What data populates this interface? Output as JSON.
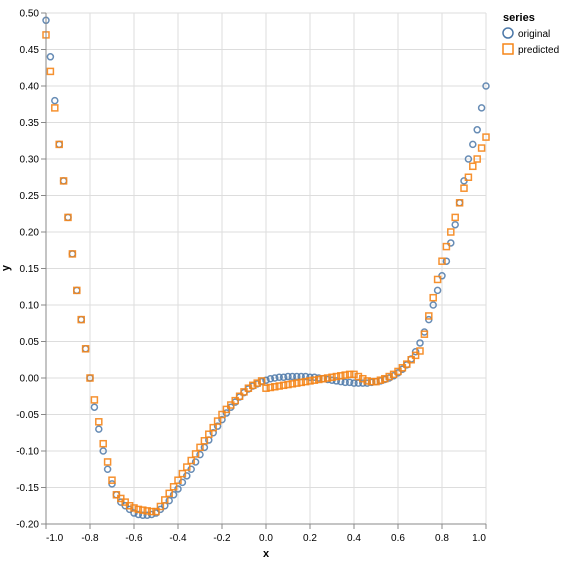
{
  "chart_data": {
    "type": "scatter",
    "xlabel": "x",
    "ylabel": "y",
    "xlim": [
      -1.0,
      1.0
    ],
    "ylim": [
      -0.2,
      0.5
    ],
    "x_ticks": [
      -1.0,
      -0.8,
      -0.6,
      -0.4,
      -0.2,
      0.0,
      0.2,
      0.4,
      0.6,
      0.8,
      1.0
    ],
    "y_ticks": [
      -0.2,
      -0.15,
      -0.1,
      -0.05,
      0.0,
      0.05,
      0.1,
      0.15,
      0.2,
      0.25,
      0.3,
      0.35,
      0.4,
      0.45,
      0.5
    ],
    "x_tick_labels": [
      "-1.0",
      "-0.8",
      "-0.6",
      "-0.4",
      "-0.2",
      "0.0",
      "0.2",
      "0.4",
      "0.6",
      "0.8",
      "1.0"
    ],
    "y_tick_labels": [
      "-0.20",
      "-0.15",
      "-0.10",
      "-0.05",
      "0.00",
      "0.05",
      "0.10",
      "0.15",
      "0.20",
      "0.25",
      "0.30",
      "0.35",
      "0.40",
      "0.45",
      "0.50"
    ],
    "grid": true,
    "legend": {
      "title": "series",
      "placement": "top-right",
      "entries": [
        {
          "label": "original",
          "shape": "circle",
          "color": "#4c78a8"
        },
        {
          "label": "predicted",
          "shape": "square",
          "color": "#f58518"
        }
      ]
    },
    "series": [
      {
        "name": "original",
        "shape": "circle",
        "color": "#4c78a8",
        "x": [
          -1.0,
          -0.98,
          -0.96,
          -0.94,
          -0.92,
          -0.9,
          -0.88,
          -0.86,
          -0.84,
          -0.82,
          -0.8,
          -0.78,
          -0.76,
          -0.74,
          -0.72,
          -0.7,
          -0.68,
          -0.66,
          -0.64,
          -0.62,
          -0.6,
          -0.58,
          -0.56,
          -0.54,
          -0.52,
          -0.5,
          -0.48,
          -0.46,
          -0.44,
          -0.42,
          -0.4,
          -0.38,
          -0.36,
          -0.34,
          -0.32,
          -0.3,
          -0.28,
          -0.26,
          -0.24,
          -0.22,
          -0.2,
          -0.18,
          -0.16,
          -0.14,
          -0.12,
          -0.1,
          -0.08,
          -0.06,
          -0.04,
          -0.02,
          0.0,
          0.02,
          0.04,
          0.06,
          0.08,
          0.1,
          0.12,
          0.14,
          0.16,
          0.18,
          0.2,
          0.22,
          0.24,
          0.26,
          0.28,
          0.3,
          0.32,
          0.34,
          0.36,
          0.38,
          0.4,
          0.42,
          0.44,
          0.46,
          0.48,
          0.5,
          0.52,
          0.54,
          0.56,
          0.58,
          0.6,
          0.62,
          0.64,
          0.66,
          0.68,
          0.7,
          0.72,
          0.74,
          0.76,
          0.78,
          0.8,
          0.82,
          0.84,
          0.86,
          0.88,
          0.9,
          0.92,
          0.94,
          0.96,
          0.98,
          1.0
        ],
        "y": [
          0.49,
          0.44,
          0.38,
          0.32,
          0.27,
          0.22,
          0.17,
          0.12,
          0.08,
          0.04,
          0.0,
          -0.04,
          -0.07,
          -0.1,
          -0.125,
          -0.145,
          -0.16,
          -0.17,
          -0.175,
          -0.18,
          -0.185,
          -0.187,
          -0.188,
          -0.188,
          -0.187,
          -0.185,
          -0.18,
          -0.175,
          -0.168,
          -0.16,
          -0.152,
          -0.143,
          -0.134,
          -0.125,
          -0.115,
          -0.105,
          -0.095,
          -0.085,
          -0.075,
          -0.066,
          -0.057,
          -0.048,
          -0.04,
          -0.033,
          -0.026,
          -0.02,
          -0.015,
          -0.011,
          -0.008,
          -0.005,
          -0.003,
          -0.001,
          0.0,
          0.001,
          0.001,
          0.002,
          0.002,
          0.002,
          0.002,
          0.002,
          0.001,
          0.001,
          0.0,
          -0.001,
          -0.002,
          -0.003,
          -0.004,
          -0.005,
          -0.006,
          -0.006,
          -0.007,
          -0.007,
          -0.007,
          -0.007,
          -0.006,
          -0.005,
          -0.004,
          -0.002,
          0.0,
          0.003,
          0.007,
          0.012,
          0.018,
          0.026,
          0.036,
          0.048,
          0.063,
          0.08,
          0.1,
          0.12,
          0.14,
          0.16,
          0.185,
          0.21,
          0.24,
          0.27,
          0.3,
          0.32,
          0.34,
          0.37,
          0.4
        ]
      },
      {
        "name": "predicted",
        "shape": "square",
        "color": "#f58518",
        "x": [
          -1.0,
          -0.98,
          -0.96,
          -0.94,
          -0.92,
          -0.9,
          -0.88,
          -0.86,
          -0.84,
          -0.82,
          -0.8,
          -0.78,
          -0.76,
          -0.74,
          -0.72,
          -0.7,
          -0.68,
          -0.66,
          -0.64,
          -0.62,
          -0.6,
          -0.58,
          -0.56,
          -0.54,
          -0.52,
          -0.5,
          -0.48,
          -0.46,
          -0.44,
          -0.42,
          -0.4,
          -0.38,
          -0.36,
          -0.34,
          -0.32,
          -0.3,
          -0.28,
          -0.26,
          -0.24,
          -0.22,
          -0.2,
          -0.18,
          -0.16,
          -0.14,
          -0.12,
          -0.1,
          -0.08,
          -0.06,
          -0.04,
          -0.02,
          0.0,
          0.02,
          0.04,
          0.06,
          0.08,
          0.1,
          0.12,
          0.14,
          0.16,
          0.18,
          0.2,
          0.22,
          0.24,
          0.26,
          0.28,
          0.3,
          0.32,
          0.34,
          0.36,
          0.38,
          0.4,
          0.42,
          0.44,
          0.46,
          0.48,
          0.5,
          0.52,
          0.54,
          0.56,
          0.58,
          0.6,
          0.62,
          0.64,
          0.66,
          0.68,
          0.7,
          0.72,
          0.74,
          0.76,
          0.78,
          0.8,
          0.82,
          0.84,
          0.86,
          0.88,
          0.9,
          0.92,
          0.94,
          0.96,
          0.98,
          1.0
        ],
        "y": [
          0.47,
          0.42,
          0.37,
          0.32,
          0.27,
          0.22,
          0.17,
          0.12,
          0.08,
          0.04,
          0.0,
          -0.03,
          -0.06,
          -0.09,
          -0.115,
          -0.14,
          -0.16,
          -0.165,
          -0.17,
          -0.175,
          -0.178,
          -0.18,
          -0.181,
          -0.182,
          -0.183,
          -0.183,
          -0.176,
          -0.167,
          -0.158,
          -0.149,
          -0.14,
          -0.131,
          -0.122,
          -0.113,
          -0.104,
          -0.095,
          -0.086,
          -0.077,
          -0.068,
          -0.059,
          -0.05,
          -0.043,
          -0.037,
          -0.031,
          -0.025,
          -0.019,
          -0.014,
          -0.01,
          -0.007,
          -0.004,
          -0.014,
          -0.013,
          -0.012,
          -0.011,
          -0.01,
          -0.009,
          -0.008,
          -0.007,
          -0.006,
          -0.005,
          -0.004,
          -0.003,
          -0.002,
          -0.001,
          0.0,
          0.001,
          0.002,
          0.003,
          0.004,
          0.005,
          0.005,
          0.002,
          -0.001,
          -0.004,
          -0.005,
          -0.005,
          -0.003,
          -0.001,
          0.002,
          0.005,
          0.009,
          0.014,
          0.019,
          0.025,
          0.031,
          0.037,
          0.06,
          0.085,
          0.11,
          0.135,
          0.16,
          0.18,
          0.2,
          0.22,
          0.24,
          0.26,
          0.275,
          0.29,
          0.3,
          0.315,
          0.33
        ]
      }
    ]
  }
}
